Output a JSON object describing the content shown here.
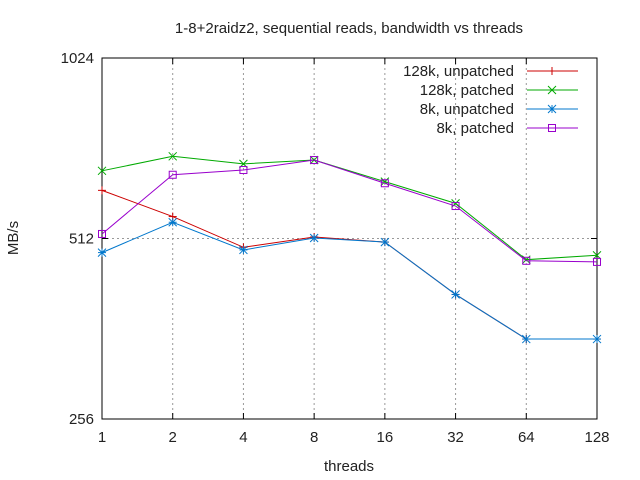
{
  "chart_data": {
    "type": "line",
    "title": "1-8+2raidz2, sequential reads, bandwidth vs threads",
    "xlabel": "threads",
    "ylabel": "MB/s",
    "x_scale": "log2",
    "y_scale": "log2",
    "categories": [
      "1",
      "2",
      "4",
      "8",
      "16",
      "32",
      "64",
      "128"
    ],
    "x": [
      1,
      2,
      4,
      8,
      16,
      32,
      64,
      128
    ],
    "xlim": [
      1,
      128
    ],
    "ylim": [
      256,
      1024
    ],
    "yticks": [
      "256",
      "512",
      "1024"
    ],
    "ytick_values": [
      256,
      512,
      1024
    ],
    "grid": true,
    "legend_position": "top-right",
    "series": [
      {
        "name": "128k, unpatched",
        "color": "#cc0000",
        "marker": "plus",
        "values": [
          616,
          557,
          495,
          515,
          505,
          413,
          348,
          348
        ]
      },
      {
        "name": "128k, patched",
        "color": "#00aa00",
        "marker": "cross",
        "values": [
          664,
          702,
          682,
          692,
          637,
          586,
          472,
          480
        ]
      },
      {
        "name": "8k, unpatched",
        "color": "#0077cc",
        "marker": "star",
        "values": [
          485,
          545,
          490,
          513,
          505,
          413,
          348,
          348
        ]
      },
      {
        "name": "8k, patched",
        "color": "#9900cc",
        "marker": "box",
        "values": [
          521,
          654,
          666,
          692,
          633,
          580,
          470,
          468
        ]
      }
    ]
  }
}
